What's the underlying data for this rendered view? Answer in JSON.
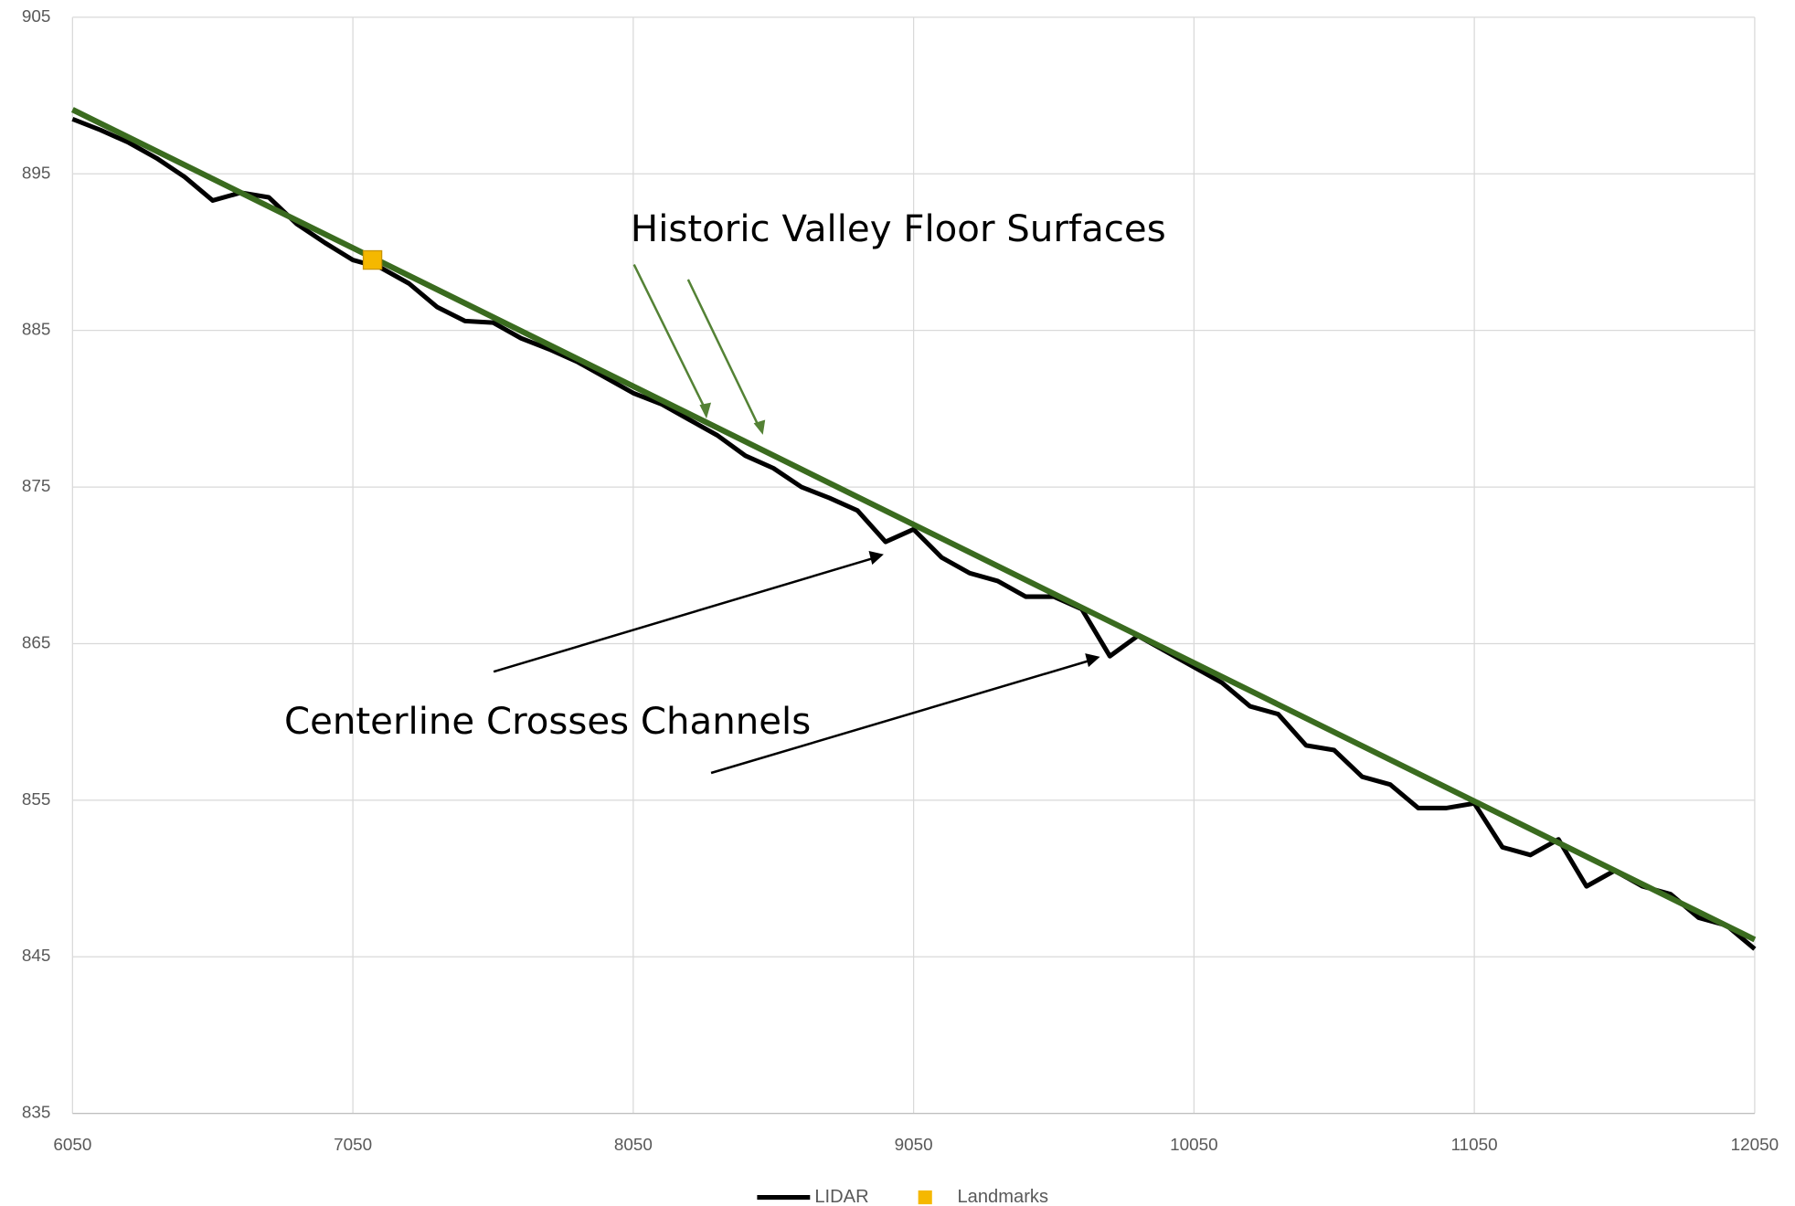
{
  "chart_data": {
    "type": "line",
    "annotations": [
      "Historic Valley Floor Surfaces",
      "Centerline Crosses Channels"
    ],
    "xlim": [
      6050,
      12050
    ],
    "xticks": [
      6050,
      7050,
      8050,
      9050,
      10050,
      11050,
      12050
    ],
    "ylim": [
      835,
      905
    ],
    "yticks": [
      835,
      845,
      855,
      865,
      875,
      885,
      895,
      905
    ],
    "grid": true,
    "legend": "bottom",
    "series": [
      {
        "name": "LIDAR",
        "color": "#000000",
        "marker": "line",
        "x": [
          6050,
          6150,
          6250,
          6350,
          6450,
          6550,
          6650,
          6750,
          6850,
          6950,
          7050,
          7150,
          7250,
          7350,
          7450,
          7550,
          7650,
          7750,
          7850,
          7950,
          8050,
          8150,
          8250,
          8350,
          8450,
          8550,
          8650,
          8750,
          8850,
          8950,
          9050,
          9150,
          9250,
          9350,
          9450,
          9550,
          9650,
          9750,
          9850,
          9950,
          10050,
          10150,
          10250,
          10350,
          10450,
          10550,
          10650,
          10750,
          10850,
          10950,
          11050,
          11150,
          11250,
          11350,
          11450,
          11550,
          11650,
          11750,
          11850,
          11950,
          12050
        ],
        "values": [
          898.5,
          897.8,
          897.0,
          896.0,
          894.8,
          893.3,
          893.8,
          893.5,
          891.8,
          890.6,
          889.5,
          889.0,
          888.0,
          886.5,
          885.6,
          885.5,
          884.5,
          883.8,
          883.0,
          882.0,
          881.0,
          880.3,
          879.3,
          878.3,
          877.0,
          876.2,
          875.0,
          874.3,
          873.5,
          871.5,
          872.3,
          870.5,
          869.5,
          869.0,
          868.0,
          868.0,
          867.2,
          864.2,
          865.5,
          864.5,
          863.5,
          862.5,
          861.0,
          860.5,
          858.5,
          858.2,
          856.5,
          856.0,
          854.5,
          854.5,
          854.8,
          852.0,
          851.5,
          852.5,
          849.5,
          850.5,
          849.5,
          849.0,
          847.5,
          847.0,
          845.5
        ]
      },
      {
        "color": "#3a6b1f",
        "marker": "line",
        "x": [
          6050,
          12050
        ],
        "values": [
          899.1,
          846.1
        ]
      },
      {
        "name": "Landmarks",
        "color": "#f5b800",
        "marker": "square",
        "x": [
          7120
        ],
        "values": [
          889.5
        ]
      }
    ]
  }
}
